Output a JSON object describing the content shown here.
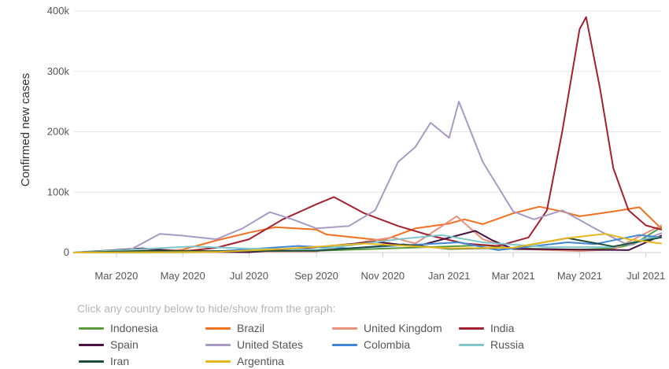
{
  "chart_data": {
    "type": "line",
    "title": "",
    "xlabel": "",
    "ylabel": "Confirmed new cases",
    "ylim": [
      0,
      400000
    ],
    "y_ticks": [
      0,
      100000,
      200000,
      300000,
      400000
    ],
    "y_tick_labels": [
      "0",
      "100k",
      "200k",
      "300k",
      "400k"
    ],
    "xlim": [
      "2020-01-22",
      "2021-07-15"
    ],
    "x_ticks": [
      "2020-03-01",
      "2020-05-01",
      "2020-07-01",
      "2020-09-01",
      "2020-11-01",
      "2021-01-01",
      "2021-03-01",
      "2021-05-01",
      "2021-07-01"
    ],
    "x_tick_labels": [
      "Mar 2020",
      "May 2020",
      "Jul 2020",
      "Sep 2020",
      "Nov 2020",
      "Jan 2021",
      "Mar 2021",
      "May 2021",
      "Jul 2021"
    ],
    "grid": "horizontal",
    "legend_position": "bottom",
    "series": [
      {
        "name": "Indonesia",
        "color": "#5b9a3c",
        "points": [
          [
            "2020-01-22",
            0
          ],
          [
            "2020-05-01",
            300
          ],
          [
            "2020-09-01",
            3000
          ],
          [
            "2021-01-01",
            10000
          ],
          [
            "2021-02-01",
            12000
          ],
          [
            "2021-03-01",
            7000
          ],
          [
            "2021-05-01",
            5000
          ],
          [
            "2021-06-01",
            7000
          ],
          [
            "2021-06-20",
            14000
          ],
          [
            "2021-07-15",
            42000
          ]
        ]
      },
      {
        "name": "Brazil",
        "color": "#f07020",
        "points": [
          [
            "2020-01-22",
            0
          ],
          [
            "2020-04-01",
            1000
          ],
          [
            "2020-05-01",
            5000
          ],
          [
            "2020-06-01",
            20000
          ],
          [
            "2020-07-01",
            33000
          ],
          [
            "2020-07-25",
            42000
          ],
          [
            "2020-09-01",
            38000
          ],
          [
            "2020-09-10",
            30000
          ],
          [
            "2020-10-01",
            26000
          ],
          [
            "2020-11-01",
            20000
          ],
          [
            "2020-12-01",
            40000
          ],
          [
            "2021-01-01",
            48000
          ],
          [
            "2021-01-15",
            55000
          ],
          [
            "2021-02-01",
            47000
          ],
          [
            "2021-03-01",
            65000
          ],
          [
            "2021-03-25",
            76000
          ],
          [
            "2021-04-15",
            68000
          ],
          [
            "2021-05-01",
            60000
          ],
          [
            "2021-06-01",
            68000
          ],
          [
            "2021-06-25",
            75000
          ],
          [
            "2021-07-15",
            40000
          ]
        ]
      },
      {
        "name": "United Kingdom",
        "color": "#e8907a",
        "points": [
          [
            "2020-01-22",
            0
          ],
          [
            "2020-04-10",
            5000
          ],
          [
            "2020-06-01",
            1500
          ],
          [
            "2020-09-01",
            2000
          ],
          [
            "2020-10-15",
            18000
          ],
          [
            "2020-11-10",
            25000
          ],
          [
            "2020-12-01",
            15000
          ],
          [
            "2021-01-08",
            60000
          ],
          [
            "2021-02-01",
            22000
          ],
          [
            "2021-03-01",
            6000
          ],
          [
            "2021-05-01",
            2500
          ],
          [
            "2021-06-01",
            5000
          ],
          [
            "2021-07-15",
            45000
          ]
        ]
      },
      {
        "name": "India",
        "color": "#a5202f",
        "points": [
          [
            "2020-01-22",
            0
          ],
          [
            "2020-05-01",
            2000
          ],
          [
            "2020-06-01",
            8000
          ],
          [
            "2020-07-01",
            22000
          ],
          [
            "2020-08-01",
            55000
          ],
          [
            "2020-09-01",
            80000
          ],
          [
            "2020-09-17",
            92000
          ],
          [
            "2020-10-15",
            65000
          ],
          [
            "2020-11-15",
            44000
          ],
          [
            "2020-12-15",
            28000
          ],
          [
            "2021-01-15",
            15000
          ],
          [
            "2021-02-15",
            11000
          ],
          [
            "2021-03-15",
            25000
          ],
          [
            "2021-04-01",
            70000
          ],
          [
            "2021-04-15",
            200000
          ],
          [
            "2021-05-01",
            370000
          ],
          [
            "2021-05-07",
            390000
          ],
          [
            "2021-05-20",
            270000
          ],
          [
            "2021-06-01",
            140000
          ],
          [
            "2021-06-15",
            70000
          ],
          [
            "2021-07-01",
            45000
          ],
          [
            "2021-07-15",
            38000
          ]
        ]
      },
      {
        "name": "Spain",
        "color": "#4a1040",
        "points": [
          [
            "2020-01-22",
            0
          ],
          [
            "2020-03-25",
            7000
          ],
          [
            "2020-05-01",
            1500
          ],
          [
            "2020-07-01",
            500
          ],
          [
            "2020-09-01",
            9000
          ],
          [
            "2020-10-25",
            18000
          ],
          [
            "2020-12-01",
            10000
          ],
          [
            "2021-01-25",
            36000
          ],
          [
            "2021-02-10",
            20000
          ],
          [
            "2021-03-01",
            6000
          ],
          [
            "2021-05-01",
            5000
          ],
          [
            "2021-06-15",
            4000
          ],
          [
            "2021-07-15",
            28000
          ]
        ]
      },
      {
        "name": "United States",
        "color": "#a899c5",
        "points": [
          [
            "2020-01-22",
            0
          ],
          [
            "2020-03-10",
            1000
          ],
          [
            "2020-04-10",
            31000
          ],
          [
            "2020-05-01",
            28000
          ],
          [
            "2020-06-01",
            22000
          ],
          [
            "2020-06-25",
            40000
          ],
          [
            "2020-07-20",
            67000
          ],
          [
            "2020-08-10",
            55000
          ],
          [
            "2020-09-01",
            40000
          ],
          [
            "2020-10-01",
            44000
          ],
          [
            "2020-10-25",
            70000
          ],
          [
            "2020-11-15",
            150000
          ],
          [
            "2020-12-01",
            175000
          ],
          [
            "2020-12-15",
            215000
          ],
          [
            "2021-01-01",
            190000
          ],
          [
            "2021-01-10",
            250000
          ],
          [
            "2021-02-01",
            150000
          ],
          [
            "2021-03-01",
            68000
          ],
          [
            "2021-03-20",
            55000
          ],
          [
            "2021-04-15",
            70000
          ],
          [
            "2021-05-15",
            40000
          ],
          [
            "2021-06-15",
            12000
          ],
          [
            "2021-07-15",
            32000
          ]
        ]
      },
      {
        "name": "Colombia",
        "color": "#3f86d6",
        "points": [
          [
            "2020-01-22",
            0
          ],
          [
            "2020-06-01",
            2000
          ],
          [
            "2020-08-15",
            11000
          ],
          [
            "2020-10-01",
            7000
          ],
          [
            "2021-01-10",
            17000
          ],
          [
            "2021-02-15",
            4000
          ],
          [
            "2021-04-20",
            17000
          ],
          [
            "2021-05-15",
            14000
          ],
          [
            "2021-06-25",
            29000
          ],
          [
            "2021-07-15",
            25000
          ]
        ]
      },
      {
        "name": "Russia",
        "color": "#7fc7c9",
        "points": [
          [
            "2020-01-22",
            0
          ],
          [
            "2020-05-10",
            10000
          ],
          [
            "2020-07-01",
            6500
          ],
          [
            "2020-09-01",
            5000
          ],
          [
            "2020-11-15",
            22000
          ],
          [
            "2020-12-25",
            29000
          ],
          [
            "2021-02-01",
            17000
          ],
          [
            "2021-04-01",
            9000
          ],
          [
            "2021-06-01",
            9000
          ],
          [
            "2021-07-01",
            23000
          ],
          [
            "2021-07-15",
            25000
          ]
        ]
      },
      {
        "name": "Iran",
        "color": "#1f4d3c",
        "points": [
          [
            "2020-01-22",
            0
          ],
          [
            "2020-04-01",
            3000
          ],
          [
            "2020-06-01",
            2500
          ],
          [
            "2020-09-01",
            3000
          ],
          [
            "2020-11-20",
            13500
          ],
          [
            "2021-01-01",
            6000
          ],
          [
            "2021-03-01",
            8000
          ],
          [
            "2021-04-20",
            24000
          ],
          [
            "2021-06-01",
            10000
          ],
          [
            "2021-07-15",
            25000
          ]
        ]
      },
      {
        "name": "Argentina",
        "color": "#e8b820",
        "points": [
          [
            "2020-01-22",
            0
          ],
          [
            "2020-06-01",
            1000
          ],
          [
            "2020-08-01",
            6000
          ],
          [
            "2020-10-15",
            15000
          ],
          [
            "2021-01-01",
            7000
          ],
          [
            "2021-03-01",
            8000
          ],
          [
            "2021-04-20",
            24000
          ],
          [
            "2021-05-25",
            31000
          ],
          [
            "2021-06-15",
            22000
          ],
          [
            "2021-07-15",
            15000
          ]
        ]
      }
    ]
  },
  "legend": {
    "hint": "Click any country below to hide/show from the graph:"
  }
}
